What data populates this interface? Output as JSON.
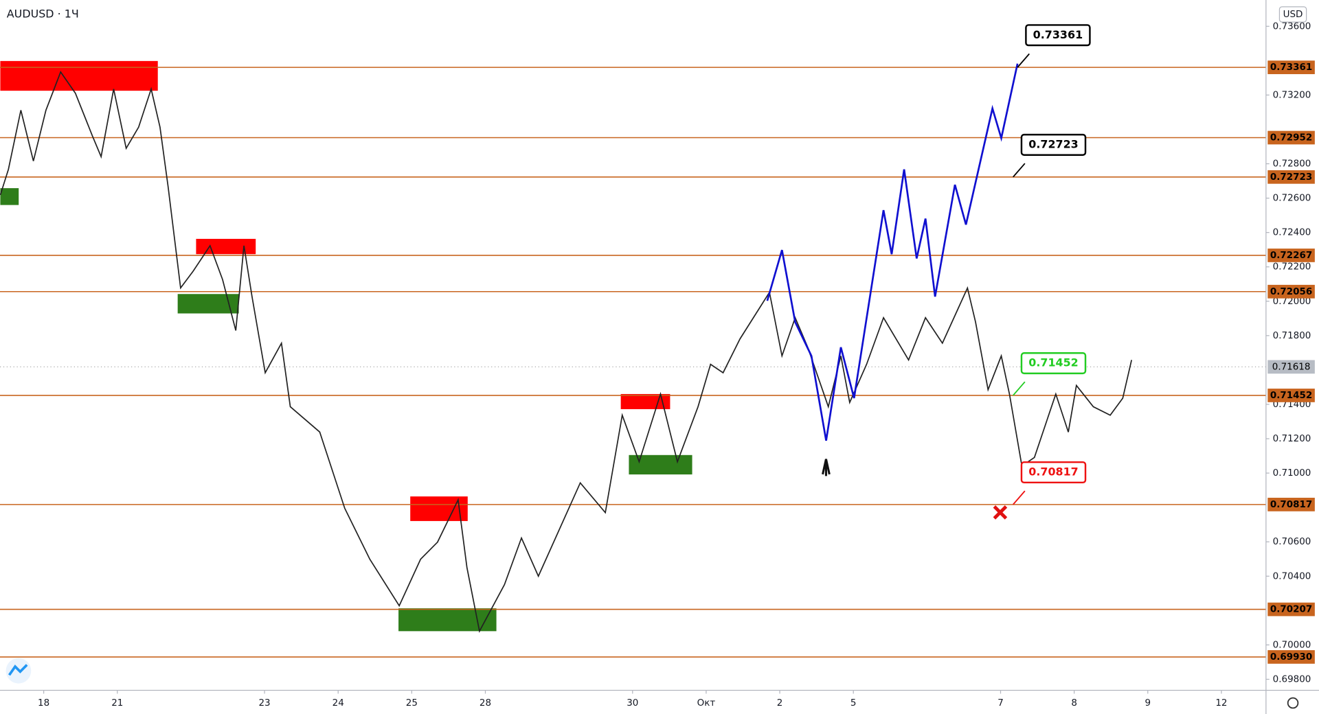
{
  "chart_data": {
    "type": "price",
    "title": "AUDUSD · 1Ч",
    "currency": "USD",
    "xlim": [
      -0.594,
      16.606
    ],
    "ylim": [
      0.69736,
      0.73753
    ],
    "xticks": [
      {
        "value": 0,
        "label": "18"
      },
      {
        "value": 1,
        "label": "21"
      },
      {
        "value": 3,
        "label": "23"
      },
      {
        "value": 4,
        "label": "24"
      },
      {
        "value": 5,
        "label": "25"
      },
      {
        "value": 6,
        "label": "28"
      },
      {
        "value": 8,
        "label": "30"
      },
      {
        "value": 9,
        "label": "Окт"
      },
      {
        "value": 10,
        "label": "2"
      },
      {
        "value": 11,
        "label": "5"
      },
      {
        "value": 13,
        "label": "7"
      },
      {
        "value": 14,
        "label": "8"
      },
      {
        "value": 15,
        "label": "9"
      },
      {
        "value": 16,
        "label": "12"
      }
    ],
    "yticks": [
      {
        "value": 0.736,
        "label": "0.73600"
      },
      {
        "value": 0.732,
        "label": "0.73200"
      },
      {
        "value": 0.728,
        "label": "0.72800"
      },
      {
        "value": 0.726,
        "label": "0.72600"
      },
      {
        "value": 0.724,
        "label": "0.72400"
      },
      {
        "value": 0.722,
        "label": "0.72200"
      },
      {
        "value": 0.72,
        "label": "0.72000"
      },
      {
        "value": 0.718,
        "label": "0.71800"
      },
      {
        "value": 0.714,
        "label": "0.71400"
      },
      {
        "value": 0.712,
        "label": "0.71200"
      },
      {
        "value": 0.71,
        "label": "0.71000"
      },
      {
        "value": 0.706,
        "label": "0.70600"
      },
      {
        "value": 0.704,
        "label": "0.70400"
      },
      {
        "value": 0.7,
        "label": "0.70000"
      },
      {
        "value": 0.698,
        "label": "0.69800"
      }
    ],
    "series": [
      {
        "color": "#222222",
        "x": [
          -0.59,
          -0.48,
          -0.31,
          -0.14,
          0.03,
          0.23,
          0.43,
          0.66,
          0.78,
          0.95,
          1.12,
          1.29,
          1.46,
          1.58,
          1.69,
          1.86,
          2.03,
          2.26,
          2.43,
          2.61,
          2.72,
          2.83,
          3.01,
          3.23,
          3.35,
          3.75,
          4.09,
          4.43,
          4.83,
          5.12,
          5.35,
          5.63,
          5.75,
          5.92,
          6.26,
          6.49,
          6.72,
          7.29,
          7.63,
          7.86,
          8.09,
          8.38,
          8.61,
          8.89,
          9.06,
          9.23,
          9.46,
          9.86,
          10.03,
          10.21,
          10.38,
          10.66,
          10.83,
          10.95,
          11.18,
          11.41,
          11.75,
          11.98,
          12.21,
          12.55,
          12.66,
          12.83,
          13.01,
          13.12,
          13.29,
          13.46,
          13.75,
          13.92,
          14.03,
          14.26,
          14.49,
          14.66,
          14.78
        ],
        "values": [
          0.72619,
          0.72767,
          0.73112,
          0.72816,
          0.73112,
          0.73334,
          0.73211,
          0.72964,
          0.72841,
          0.73235,
          0.7289,
          0.73013,
          0.73235,
          0.73013,
          0.72668,
          0.72077,
          0.72175,
          0.72323,
          0.72126,
          0.7183,
          0.72323,
          0.72027,
          0.71584,
          0.71756,
          0.71386,
          0.71239,
          0.70795,
          0.70499,
          0.70228,
          0.70499,
          0.70598,
          0.70844,
          0.7045,
          0.7008,
          0.70351,
          0.70622,
          0.704,
          0.70943,
          0.7077,
          0.71337,
          0.71066,
          0.7146,
          0.71066,
          0.71386,
          0.71633,
          0.71584,
          0.71781,
          0.72052,
          0.71682,
          0.71904,
          0.71732,
          0.71386,
          0.71682,
          0.71411,
          0.71633,
          0.71904,
          0.71658,
          0.71904,
          0.71756,
          0.72077,
          0.71879,
          0.71485,
          0.71682,
          0.7146,
          0.71041,
          0.71091,
          0.7146,
          0.71239,
          0.7151,
          0.71386,
          0.71337,
          0.71436,
          0.71658
        ]
      },
      {
        "color": "#1010d0",
        "x": [
          9.83,
          10.03,
          10.21,
          10.43,
          10.63,
          10.83,
          11.01,
          11.41,
          11.52,
          11.69,
          11.86,
          11.98,
          12.11,
          12.38,
          12.53,
          12.89,
          13.01,
          13.23
        ],
        "values": [
          0.72003,
          0.72298,
          0.71879,
          0.71682,
          0.71189,
          0.71732,
          0.71436,
          0.7253,
          0.72274,
          0.72767,
          0.72249,
          0.72481,
          0.72027,
          0.72678,
          0.72446,
          0.73122,
          0.72949,
          0.73383
        ]
      }
    ],
    "zones": [
      {
        "color": "#ff0000",
        "x": [
          -0.59,
          1.55
        ],
        "y": [
          0.73225,
          0.73398
        ]
      },
      {
        "color": "#2e7d1a",
        "x": [
          -0.59,
          -0.34
        ],
        "y": [
          0.7256,
          0.72658
        ]
      },
      {
        "color": "#ff0000",
        "x": [
          2.07,
          2.88
        ],
        "y": [
          0.72274,
          0.72363
        ]
      },
      {
        "color": "#2e7d1a",
        "x": [
          1.82,
          2.65
        ],
        "y": [
          0.71929,
          0.72042
        ]
      },
      {
        "color": "#ff0000",
        "x": [
          7.84,
          8.51
        ],
        "y": [
          0.71372,
          0.7146
        ]
      },
      {
        "color": "#2e7d1a",
        "x": [
          7.95,
          8.81
        ],
        "y": [
          0.70992,
          0.71105
        ]
      },
      {
        "color": "#ff0000",
        "x": [
          4.98,
          5.76
        ],
        "y": [
          0.70721,
          0.70864
        ]
      },
      {
        "color": "#2e7d1a",
        "x": [
          4.82,
          6.15
        ],
        "y": [
          0.7008,
          0.70213
        ]
      }
    ],
    "levels": {
      "color": "#c8641e",
      "values": [
        0.73361,
        0.72952,
        0.72723,
        0.72267,
        0.72056,
        0.71452,
        0.70817,
        0.70207,
        0.6993
      ],
      "value_labels": [
        "0.73361",
        "0.72952",
        "0.72723",
        "0.72267",
        "0.72056",
        "0.71452",
        "0.70817",
        "0.70207",
        "0.69930"
      ]
    },
    "last_price": 0.71618,
    "callouts": [
      {
        "value": 0.73361,
        "x": 13.23,
        "color": "#000000"
      },
      {
        "value": 0.72723,
        "x": 13.17,
        "color": "#000000"
      },
      {
        "value": 0.71452,
        "x": 13.17,
        "color": "#22cc22"
      },
      {
        "value": 0.70817,
        "x": 13.17,
        "color": "#ee1111"
      }
    ]
  }
}
